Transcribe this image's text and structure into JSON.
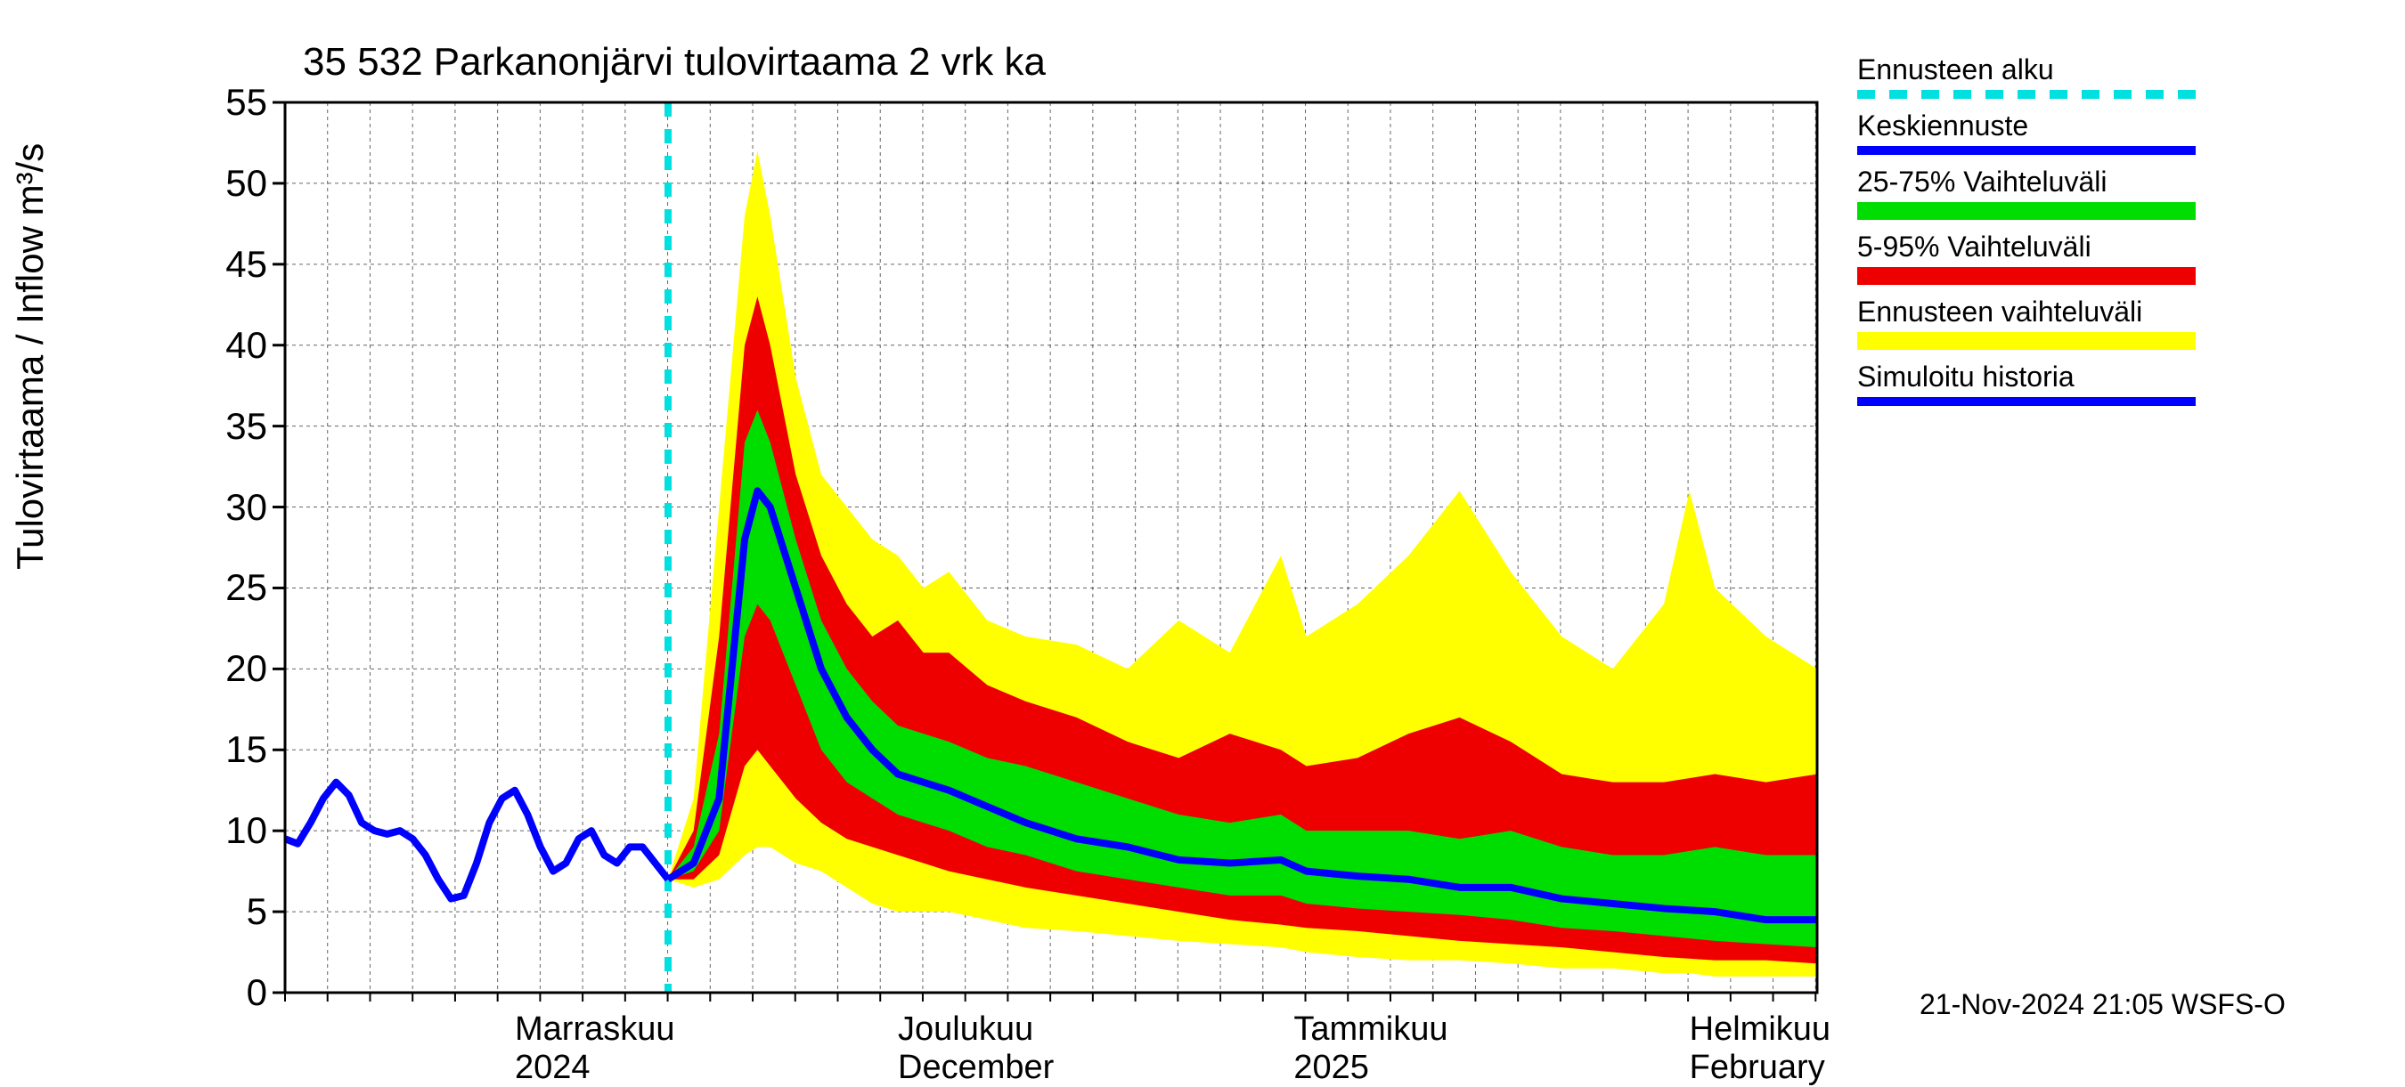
{
  "chart": {
    "type": "fan-forecast",
    "title": "35 532 Parkanonjärvi tulovirtaama 2 vrk ka",
    "ylabel": "Tulovirtaama / Inflow    m³/s",
    "ylim": [
      0,
      55
    ],
    "ytick_step": 5,
    "yticks": [
      0,
      5,
      10,
      15,
      20,
      25,
      30,
      35,
      40,
      45,
      50,
      55
    ],
    "x_start_day": 0,
    "x_end_day": 120,
    "forecast_start_day": 30,
    "x_major_labels": [
      {
        "day": 18,
        "line1": "Marraskuu",
        "line2": "2024"
      },
      {
        "day": 48,
        "line1": "Joulukuu",
        "line2": "December"
      },
      {
        "day": 79,
        "line1": "Tammikuu",
        "line2": "2025"
      },
      {
        "day": 110,
        "line1": "Helmikuu",
        "line2": "February"
      }
    ],
    "x_minor_tick_step": 3.33,
    "grid_color": "#000000",
    "background_color": "#ffffff",
    "axis_color": "#000000",
    "forecast_line_color": "#00e0e0",
    "colors": {
      "history_line": "#0000ff",
      "median_line": "#0000ff",
      "band_25_75": "#00dd00",
      "band_5_95": "#ee0000",
      "band_full": "#ffff00"
    },
    "line_width_main": 8,
    "line_width_forecast": 8,
    "history": [
      {
        "d": 0,
        "v": 9.5
      },
      {
        "d": 1,
        "v": 9.2
      },
      {
        "d": 2,
        "v": 10.5
      },
      {
        "d": 3,
        "v": 12.0
      },
      {
        "d": 4,
        "v": 13.0
      },
      {
        "d": 5,
        "v": 12.2
      },
      {
        "d": 6,
        "v": 10.5
      },
      {
        "d": 7,
        "v": 10.0
      },
      {
        "d": 8,
        "v": 9.8
      },
      {
        "d": 9,
        "v": 10.0
      },
      {
        "d": 10,
        "v": 9.5
      },
      {
        "d": 11,
        "v": 8.5
      },
      {
        "d": 12,
        "v": 7.0
      },
      {
        "d": 13,
        "v": 5.8
      },
      {
        "d": 14,
        "v": 6.0
      },
      {
        "d": 15,
        "v": 8.0
      },
      {
        "d": 16,
        "v": 10.5
      },
      {
        "d": 17,
        "v": 12.0
      },
      {
        "d": 18,
        "v": 12.5
      },
      {
        "d": 19,
        "v": 11.0
      },
      {
        "d": 20,
        "v": 9.0
      },
      {
        "d": 21,
        "v": 7.5
      },
      {
        "d": 22,
        "v": 8.0
      },
      {
        "d": 23,
        "v": 9.5
      },
      {
        "d": 24,
        "v": 10.0
      },
      {
        "d": 25,
        "v": 8.5
      },
      {
        "d": 26,
        "v": 8.0
      },
      {
        "d": 27,
        "v": 9.0
      },
      {
        "d": 28,
        "v": 9.0
      },
      {
        "d": 29,
        "v": 8.0
      },
      {
        "d": 30,
        "v": 7.0
      }
    ],
    "median": [
      {
        "d": 30,
        "v": 7.0
      },
      {
        "d": 32,
        "v": 8.0
      },
      {
        "d": 34,
        "v": 12.0
      },
      {
        "d": 36,
        "v": 28.0
      },
      {
        "d": 37,
        "v": 31.0
      },
      {
        "d": 38,
        "v": 30.0
      },
      {
        "d": 40,
        "v": 25.0
      },
      {
        "d": 42,
        "v": 20.0
      },
      {
        "d": 44,
        "v": 17.0
      },
      {
        "d": 46,
        "v": 15.0
      },
      {
        "d": 48,
        "v": 13.5
      },
      {
        "d": 50,
        "v": 13.0
      },
      {
        "d": 52,
        "v": 12.5
      },
      {
        "d": 55,
        "v": 11.5
      },
      {
        "d": 58,
        "v": 10.5
      },
      {
        "d": 62,
        "v": 9.5
      },
      {
        "d": 66,
        "v": 9.0
      },
      {
        "d": 70,
        "v": 8.2
      },
      {
        "d": 74,
        "v": 8.0
      },
      {
        "d": 78,
        "v": 8.2
      },
      {
        "d": 80,
        "v": 7.5
      },
      {
        "d": 84,
        "v": 7.2
      },
      {
        "d": 88,
        "v": 7.0
      },
      {
        "d": 92,
        "v": 6.5
      },
      {
        "d": 96,
        "v": 6.5
      },
      {
        "d": 100,
        "v": 5.8
      },
      {
        "d": 104,
        "v": 5.5
      },
      {
        "d": 108,
        "v": 5.2
      },
      {
        "d": 112,
        "v": 5.0
      },
      {
        "d": 116,
        "v": 4.5
      },
      {
        "d": 120,
        "v": 4.5
      }
    ],
    "band_25_75": [
      {
        "d": 30,
        "lo": 7.0,
        "hi": 7.0
      },
      {
        "d": 32,
        "lo": 7.5,
        "hi": 9.0
      },
      {
        "d": 34,
        "lo": 10.0,
        "hi": 16.0
      },
      {
        "d": 36,
        "lo": 22.0,
        "hi": 34.0
      },
      {
        "d": 37,
        "lo": 24.0,
        "hi": 36.0
      },
      {
        "d": 38,
        "lo": 23.0,
        "hi": 34.0
      },
      {
        "d": 40,
        "lo": 19.0,
        "hi": 28.0
      },
      {
        "d": 42,
        "lo": 15.0,
        "hi": 23.0
      },
      {
        "d": 44,
        "lo": 13.0,
        "hi": 20.0
      },
      {
        "d": 46,
        "lo": 12.0,
        "hi": 18.0
      },
      {
        "d": 48,
        "lo": 11.0,
        "hi": 16.5
      },
      {
        "d": 50,
        "lo": 10.5,
        "hi": 16.0
      },
      {
        "d": 52,
        "lo": 10.0,
        "hi": 15.5
      },
      {
        "d": 55,
        "lo": 9.0,
        "hi": 14.5
      },
      {
        "d": 58,
        "lo": 8.5,
        "hi": 14.0
      },
      {
        "d": 62,
        "lo": 7.5,
        "hi": 13.0
      },
      {
        "d": 66,
        "lo": 7.0,
        "hi": 12.0
      },
      {
        "d": 70,
        "lo": 6.5,
        "hi": 11.0
      },
      {
        "d": 74,
        "lo": 6.0,
        "hi": 10.5
      },
      {
        "d": 78,
        "lo": 6.0,
        "hi": 11.0
      },
      {
        "d": 80,
        "lo": 5.5,
        "hi": 10.0
      },
      {
        "d": 84,
        "lo": 5.2,
        "hi": 10.0
      },
      {
        "d": 88,
        "lo": 5.0,
        "hi": 10.0
      },
      {
        "d": 92,
        "lo": 4.8,
        "hi": 9.5
      },
      {
        "d": 96,
        "lo": 4.5,
        "hi": 10.0
      },
      {
        "d": 100,
        "lo": 4.0,
        "hi": 9.0
      },
      {
        "d": 104,
        "lo": 3.8,
        "hi": 8.5
      },
      {
        "d": 108,
        "lo": 3.5,
        "hi": 8.5
      },
      {
        "d": 112,
        "lo": 3.2,
        "hi": 9.0
      },
      {
        "d": 116,
        "lo": 3.0,
        "hi": 8.5
      },
      {
        "d": 120,
        "lo": 2.8,
        "hi": 8.5
      }
    ],
    "band_5_95": [
      {
        "d": 30,
        "lo": 7.0,
        "hi": 7.0
      },
      {
        "d": 32,
        "lo": 7.0,
        "hi": 10.0
      },
      {
        "d": 34,
        "lo": 8.5,
        "hi": 22.0
      },
      {
        "d": 36,
        "lo": 14.0,
        "hi": 40.0
      },
      {
        "d": 37,
        "lo": 15.0,
        "hi": 43.0
      },
      {
        "d": 38,
        "lo": 14.0,
        "hi": 40.0
      },
      {
        "d": 40,
        "lo": 12.0,
        "hi": 32.0
      },
      {
        "d": 42,
        "lo": 10.5,
        "hi": 27.0
      },
      {
        "d": 44,
        "lo": 9.5,
        "hi": 24.0
      },
      {
        "d": 46,
        "lo": 9.0,
        "hi": 22.0
      },
      {
        "d": 48,
        "lo": 8.5,
        "hi": 23.0
      },
      {
        "d": 50,
        "lo": 8.0,
        "hi": 21.0
      },
      {
        "d": 52,
        "lo": 7.5,
        "hi": 21.0
      },
      {
        "d": 55,
        "lo": 7.0,
        "hi": 19.0
      },
      {
        "d": 58,
        "lo": 6.5,
        "hi": 18.0
      },
      {
        "d": 62,
        "lo": 6.0,
        "hi": 17.0
      },
      {
        "d": 66,
        "lo": 5.5,
        "hi": 15.5
      },
      {
        "d": 70,
        "lo": 5.0,
        "hi": 14.5
      },
      {
        "d": 74,
        "lo": 4.5,
        "hi": 16.0
      },
      {
        "d": 78,
        "lo": 4.2,
        "hi": 15.0
      },
      {
        "d": 80,
        "lo": 4.0,
        "hi": 14.0
      },
      {
        "d": 84,
        "lo": 3.8,
        "hi": 14.5
      },
      {
        "d": 88,
        "lo": 3.5,
        "hi": 16.0
      },
      {
        "d": 92,
        "lo": 3.2,
        "hi": 17.0
      },
      {
        "d": 96,
        "lo": 3.0,
        "hi": 15.5
      },
      {
        "d": 100,
        "lo": 2.8,
        "hi": 13.5
      },
      {
        "d": 104,
        "lo": 2.5,
        "hi": 13.0
      },
      {
        "d": 108,
        "lo": 2.2,
        "hi": 13.0
      },
      {
        "d": 112,
        "lo": 2.0,
        "hi": 13.5
      },
      {
        "d": 116,
        "lo": 2.0,
        "hi": 13.0
      },
      {
        "d": 120,
        "lo": 1.8,
        "hi": 13.5
      }
    ],
    "band_full": [
      {
        "d": 30,
        "lo": 7.0,
        "hi": 7.0
      },
      {
        "d": 32,
        "lo": 6.5,
        "hi": 12.0
      },
      {
        "d": 34,
        "lo": 7.0,
        "hi": 30.0
      },
      {
        "d": 36,
        "lo": 8.5,
        "hi": 48.0
      },
      {
        "d": 37,
        "lo": 9.0,
        "hi": 52.0
      },
      {
        "d": 38,
        "lo": 9.0,
        "hi": 48.0
      },
      {
        "d": 40,
        "lo": 8.0,
        "hi": 38.0
      },
      {
        "d": 42,
        "lo": 7.5,
        "hi": 32.0
      },
      {
        "d": 44,
        "lo": 6.5,
        "hi": 30.0
      },
      {
        "d": 46,
        "lo": 5.5,
        "hi": 28.0
      },
      {
        "d": 48,
        "lo": 5.0,
        "hi": 27.0
      },
      {
        "d": 50,
        "lo": 5.0,
        "hi": 25.0
      },
      {
        "d": 52,
        "lo": 5.0,
        "hi": 26.0
      },
      {
        "d": 55,
        "lo": 4.5,
        "hi": 23.0
      },
      {
        "d": 58,
        "lo": 4.0,
        "hi": 22.0
      },
      {
        "d": 62,
        "lo": 3.8,
        "hi": 21.5
      },
      {
        "d": 66,
        "lo": 3.5,
        "hi": 20.0
      },
      {
        "d": 70,
        "lo": 3.2,
        "hi": 23.0
      },
      {
        "d": 74,
        "lo": 3.0,
        "hi": 21.0
      },
      {
        "d": 78,
        "lo": 2.8,
        "hi": 27.0
      },
      {
        "d": 80,
        "lo": 2.5,
        "hi": 22.0
      },
      {
        "d": 84,
        "lo": 2.2,
        "hi": 24.0
      },
      {
        "d": 88,
        "lo": 2.0,
        "hi": 27.0
      },
      {
        "d": 92,
        "lo": 2.0,
        "hi": 31.0
      },
      {
        "d": 96,
        "lo": 1.8,
        "hi": 26.0
      },
      {
        "d": 100,
        "lo": 1.5,
        "hi": 22.0
      },
      {
        "d": 104,
        "lo": 1.5,
        "hi": 20.0
      },
      {
        "d": 108,
        "lo": 1.2,
        "hi": 24.0
      },
      {
        "d": 110,
        "lo": 1.2,
        "hi": 31.0
      },
      {
        "d": 112,
        "lo": 1.0,
        "hi": 25.0
      },
      {
        "d": 116,
        "lo": 1.0,
        "hi": 22.0
      },
      {
        "d": 120,
        "lo": 1.0,
        "hi": 20.0
      }
    ]
  },
  "legend": {
    "items": [
      {
        "label": "Ennusteen alku",
        "style": "dashed"
      },
      {
        "label": "Keskiennuste",
        "style": "solid-blue"
      },
      {
        "label": "25-75% Vaihteluväli",
        "style": "solid-green"
      },
      {
        "label": "5-95% Vaihteluväli",
        "style": "solid-red"
      },
      {
        "label": "Ennusteen vaihteluväli",
        "style": "solid-yellow"
      },
      {
        "label": "Simuloitu historia",
        "style": "solid-blue"
      }
    ]
  },
  "footer": {
    "timestamp": "21-Nov-2024 21:05 WSFS-O"
  }
}
